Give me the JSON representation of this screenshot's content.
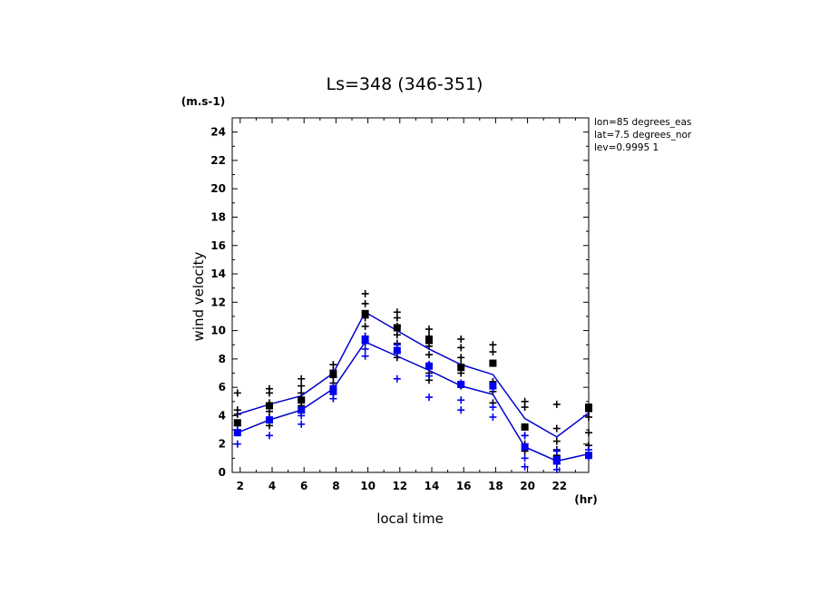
{
  "chart_data": {
    "type": "line",
    "title": "Ls=348 (346-351)",
    "xlabel": "local time",
    "ylabel": "wind velocity",
    "x_unit": "(hr)",
    "y_unit": "(m.s-1)",
    "info_lines": [
      "lon=85 degrees_eas",
      "lat=7.5 degrees_nor",
      "lev=0.9995 1"
    ],
    "xlim": [
      1.5,
      23.83
    ],
    "ylim": [
      0,
      25
    ],
    "x_ticks": [
      2,
      4,
      6,
      8,
      10,
      12,
      14,
      16,
      18,
      20,
      22
    ],
    "y_ticks": [
      0,
      2,
      4,
      6,
      8,
      10,
      12,
      14,
      16,
      18,
      20,
      22,
      24
    ],
    "grid": false,
    "x": [
      1.83,
      3.83,
      5.83,
      7.83,
      9.83,
      11.83,
      13.83,
      15.83,
      17.83,
      19.83,
      21.83,
      23.83
    ],
    "series": [
      {
        "color": "#000000",
        "line_color": "#0000cc",
        "line": [
          4.1,
          4.8,
          5.4,
          7.0,
          11.3,
          10.0,
          8.7,
          7.6,
          6.9,
          3.8,
          2.5,
          4.2
        ],
        "square": [
          3.5,
          4.7,
          5.1,
          6.9,
          11.2,
          10.2,
          9.3,
          7.4,
          7.7,
          3.2,
          1.0,
          4.6
        ],
        "crosses": [
          [
            5.6,
            4.4,
            4.1,
            3.3
          ],
          [
            5.9,
            5.6,
            4.9,
            4.3,
            3.8,
            3.3
          ],
          [
            6.6,
            6.1,
            5.6,
            5.1,
            4.7,
            4.2
          ],
          [
            7.6,
            7.2,
            6.7,
            6.3,
            5.9
          ],
          [
            12.6,
            11.9,
            10.9,
            10.3,
            9.6,
            9.2
          ],
          [
            11.3,
            10.9,
            10.3,
            9.7,
            9.1,
            8.5,
            8.1
          ],
          [
            10.1,
            9.6,
            8.9,
            8.3,
            7.6,
            7.0,
            6.5
          ],
          [
            9.4,
            8.8,
            8.1,
            7.6,
            7.0,
            6.1
          ],
          [
            9.0,
            8.5,
            7.7,
            6.4,
            5.7,
            4.9
          ],
          [
            5.0,
            4.6,
            3.2,
            2.6,
            2.0,
            1.5
          ],
          [
            4.8,
            3.1,
            2.2,
            1.6,
            1.1,
            0.6
          ],
          [
            4.3,
            3.9,
            2.8,
            1.9
          ]
        ]
      },
      {
        "color": "#0000ee",
        "line_color": "#0000cc",
        "line": [
          2.8,
          3.7,
          4.4,
          5.9,
          9.2,
          8.2,
          7.2,
          6.1,
          5.5,
          1.8,
          0.8,
          1.3
        ],
        "square": [
          2.8,
          3.7,
          4.4,
          5.8,
          9.3,
          8.6,
          7.5,
          6.2,
          6.1,
          1.8,
          0.9,
          1.2
        ],
        "crosses": [
          [
            3.0,
            2.0
          ],
          [
            3.8,
            2.6
          ],
          [
            4.0,
            3.4
          ],
          [
            6.1,
            5.5,
            5.2
          ],
          [
            9.6,
            8.7,
            8.2
          ],
          [
            9.0,
            6.6
          ],
          [
            7.6,
            6.8,
            5.3
          ],
          [
            6.3,
            5.1,
            4.4
          ],
          [
            5.9,
            4.6,
            3.9
          ],
          [
            2.6,
            1.0,
            0.4
          ],
          [
            1.5,
            0.6,
            0.2
          ],
          [
            1.6,
            1.1
          ]
        ]
      }
    ]
  }
}
